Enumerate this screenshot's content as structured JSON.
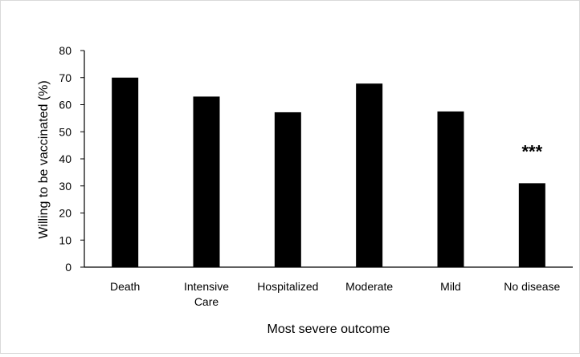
{
  "chart_data": {
    "type": "bar",
    "categories": [
      [
        "Death"
      ],
      [
        "Intensive",
        "Care"
      ],
      [
        "Hospitalized"
      ],
      [
        "Moderate"
      ],
      [
        "Mild"
      ],
      [
        "No disease"
      ]
    ],
    "values": [
      70,
      63,
      57.2,
      67.8,
      57.5,
      31
    ],
    "xlabel": "Most severe outcome",
    "ylabel": "Willing to be vaccinated  (%)",
    "ylim": [
      0,
      80
    ],
    "yticks": [
      0,
      10,
      20,
      30,
      40,
      50,
      60,
      70,
      80
    ],
    "grid": false,
    "bar_color": "#000000",
    "annotations": [
      {
        "category_index": 5,
        "text": "***"
      }
    ]
  }
}
